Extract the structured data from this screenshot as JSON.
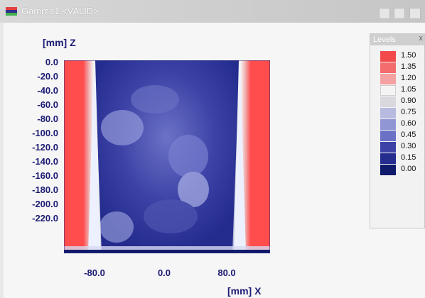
{
  "window": {
    "title": "Gamma1 <VALID>"
  },
  "plot": {
    "y_axis_label": "[mm] Z",
    "x_axis_label": "[mm] X",
    "y_ticks": [
      "0.0",
      "-20.0",
      "-40.0",
      "-60.0",
      "-80.0",
      "-100.0",
      "-120.0",
      "-140.0",
      "-160.0",
      "-180.0",
      "-200.0",
      "-220.0"
    ],
    "x_ticks": [
      "-80.0",
      "0.0",
      "80.0"
    ]
  },
  "levels": {
    "title": "Levels",
    "close_label": "x",
    "items": [
      {
        "label": "1.50",
        "color": "#f24a4a"
      },
      {
        "label": "1.35",
        "color": "#f36d6d"
      },
      {
        "label": "1.20",
        "color": "#f6a1a1"
      },
      {
        "label": "1.05",
        "color": "#f4f4f4"
      },
      {
        "label": "0.90",
        "color": "#d8d8de"
      },
      {
        "label": "0.75",
        "color": "#b8bbe0"
      },
      {
        "label": "0.60",
        "color": "#9096d3"
      },
      {
        "label": "0.45",
        "color": "#6b72c6"
      },
      {
        "label": "0.30",
        "color": "#3d43a6"
      },
      {
        "label": "0.15",
        "color": "#242c8e"
      },
      {
        "label": "0.00",
        "color": "#101a6b"
      }
    ]
  }
}
